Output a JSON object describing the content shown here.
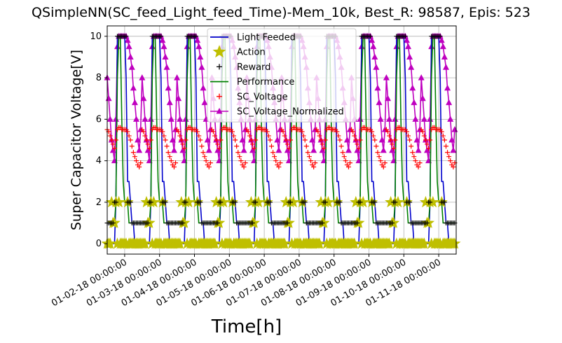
{
  "chart_data": {
    "type": "line",
    "title": "QSimpleNN(SC_feed_Light_feed_Time)-Mem_10k, Best_R: 98587, Epis: 523",
    "xlabel": "Time[h]",
    "ylabel": "Super Capacitor Voltage[V]",
    "ylim": [
      -0.5,
      10.5
    ],
    "yticks": [
      "0",
      "2",
      "4",
      "6",
      "8",
      "10"
    ],
    "xticks": [
      "01-02-18 00:00:00",
      "01-03-18 00:00:00",
      "01-04-18 00:00:00",
      "01-05-18 00:00:00",
      "01-06-18 00:00:00",
      "01-07-18 00:00:00",
      "01-08-18 00:00:00",
      "01-09-18 00:00:00",
      "01-10-18 00:00:00",
      "01-11-18 00:00:00"
    ],
    "grid": true,
    "legend_position": "top-center",
    "legend": [
      {
        "label": "Light Feeded",
        "color": "#0000cc",
        "marker": "line"
      },
      {
        "label": "Action",
        "color": "#bfbf00",
        "marker": "star"
      },
      {
        "label": "Reward",
        "color": "#000000",
        "marker": "plus"
      },
      {
        "label": "Performance",
        "color": "#008000",
        "marker": "line"
      },
      {
        "label": "SC_Voltage",
        "color": "#ff0000",
        "marker": "plus"
      },
      {
        "label": "SC_Voltage_Normalized",
        "color": "#bf00bf",
        "marker": "triangle"
      }
    ],
    "days": 10,
    "daily_pattern": {
      "hours": [
        0,
        1,
        2,
        3,
        4,
        5,
        6,
        7,
        8,
        9,
        10,
        11,
        12,
        13,
        14,
        15,
        16,
        17,
        18,
        19,
        20,
        21,
        22,
        23
      ],
      "light_feeded": [
        0,
        0,
        0,
        0,
        0,
        0,
        2,
        10,
        10,
        10,
        10,
        10,
        10,
        8,
        3,
        3,
        2,
        1,
        1,
        0,
        0,
        0,
        0,
        0
      ],
      "action": [
        0,
        0,
        0,
        2,
        1,
        1,
        2,
        0,
        2,
        0,
        0,
        0,
        0,
        0,
        2,
        0,
        0,
        0,
        0,
        0,
        0,
        0,
        0,
        0
      ],
      "reward": [
        1,
        1,
        1,
        1,
        1,
        2,
        2,
        10,
        10,
        10,
        10,
        10,
        10,
        10,
        2,
        2,
        2,
        1,
        1,
        1,
        1,
        1,
        1,
        1
      ],
      "performance": [
        1,
        1,
        1,
        1,
        1,
        1,
        2,
        8,
        10,
        10,
        6,
        3,
        2,
        2,
        2,
        1,
        1,
        1,
        1,
        1,
        1,
        1,
        1,
        1
      ],
      "sc_voltage": [
        5.5,
        5.4,
        5.2,
        5.0,
        4.8,
        4.6,
        5.0,
        5.5,
        5.6,
        5.6,
        5.5,
        5.5,
        5.5,
        5.5,
        5.4,
        5.2,
        5.0,
        4.7,
        4.4,
        4.2,
        4.0,
        3.8,
        3.7,
        3.9
      ],
      "sc_voltage_normalized": [
        8.0,
        7.0,
        6.0,
        5.0,
        4.5,
        4.0,
        6.0,
        9.5,
        10.0,
        10.0,
        10.0,
        10.0,
        10.0,
        10.0,
        9.8,
        9.5,
        9.0,
        8.5,
        7.5,
        6.8,
        6.0,
        5.0,
        4.5,
        5.5
      ]
    }
  }
}
